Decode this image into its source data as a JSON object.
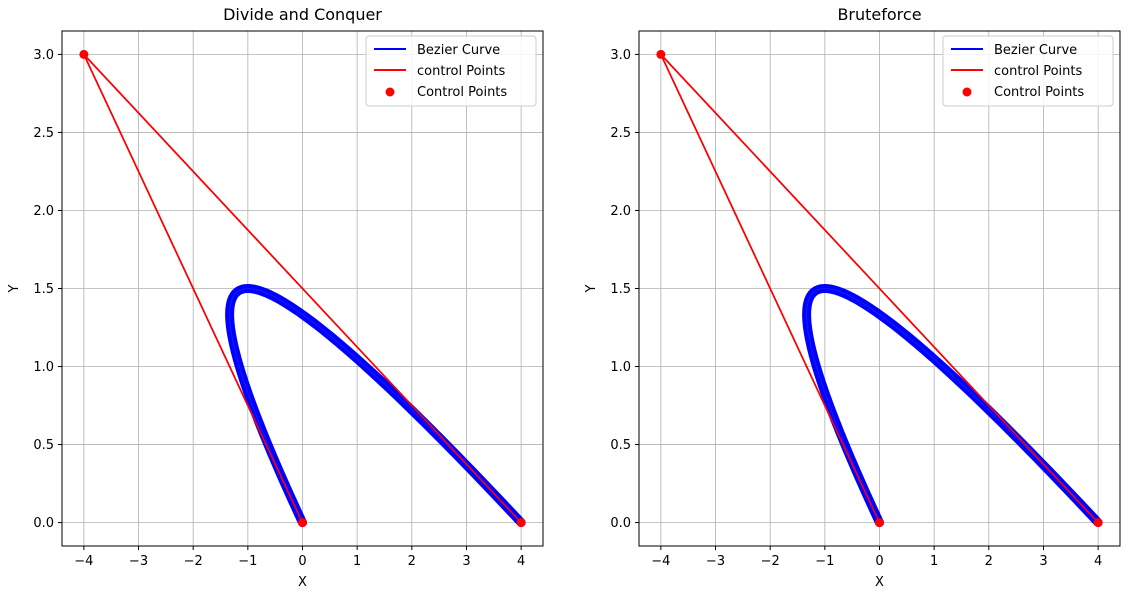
{
  "chart_data": [
    {
      "type": "line",
      "title": "Divide and Conquer",
      "xlabel": "X",
      "ylabel": "Y",
      "xlim": [
        -4.4,
        4.4
      ],
      "ylim": [
        -0.15,
        3.15
      ],
      "xticks": [
        -4,
        -3,
        -2,
        -1,
        0,
        1,
        2,
        3,
        4
      ],
      "yticks": [
        0.0,
        0.5,
        1.0,
        1.5,
        2.0,
        2.5,
        3.0
      ],
      "grid": true,
      "legend_position": "top-right",
      "control_points": [
        [
          0,
          0
        ],
        [
          -4,
          3
        ],
        [
          4,
          0
        ]
      ],
      "series": [
        {
          "name": "Bezier Curve",
          "kind": "curve",
          "color": "#0000ff"
        },
        {
          "name": "control Points",
          "kind": "polyline",
          "color": "#ff0000"
        },
        {
          "name": "Control Points",
          "kind": "scatter",
          "color": "#ff0000"
        }
      ]
    },
    {
      "type": "line",
      "title": "Bruteforce",
      "xlabel": "X",
      "ylabel": "Y",
      "xlim": [
        -4.4,
        4.4
      ],
      "ylim": [
        -0.15,
        3.15
      ],
      "xticks": [
        -4,
        -3,
        -2,
        -1,
        0,
        1,
        2,
        3,
        4
      ],
      "yticks": [
        0.0,
        0.5,
        1.0,
        1.5,
        2.0,
        2.5,
        3.0
      ],
      "grid": true,
      "legend_position": "top-right",
      "control_points": [
        [
          0,
          0
        ],
        [
          -4,
          3
        ],
        [
          4,
          0
        ]
      ],
      "series": [
        {
          "name": "Bezier Curve",
          "kind": "curve",
          "color": "#0000ff"
        },
        {
          "name": "control Points",
          "kind": "polyline",
          "color": "#ff0000"
        },
        {
          "name": "Control Points",
          "kind": "scatter",
          "color": "#ff0000"
        }
      ]
    }
  ]
}
